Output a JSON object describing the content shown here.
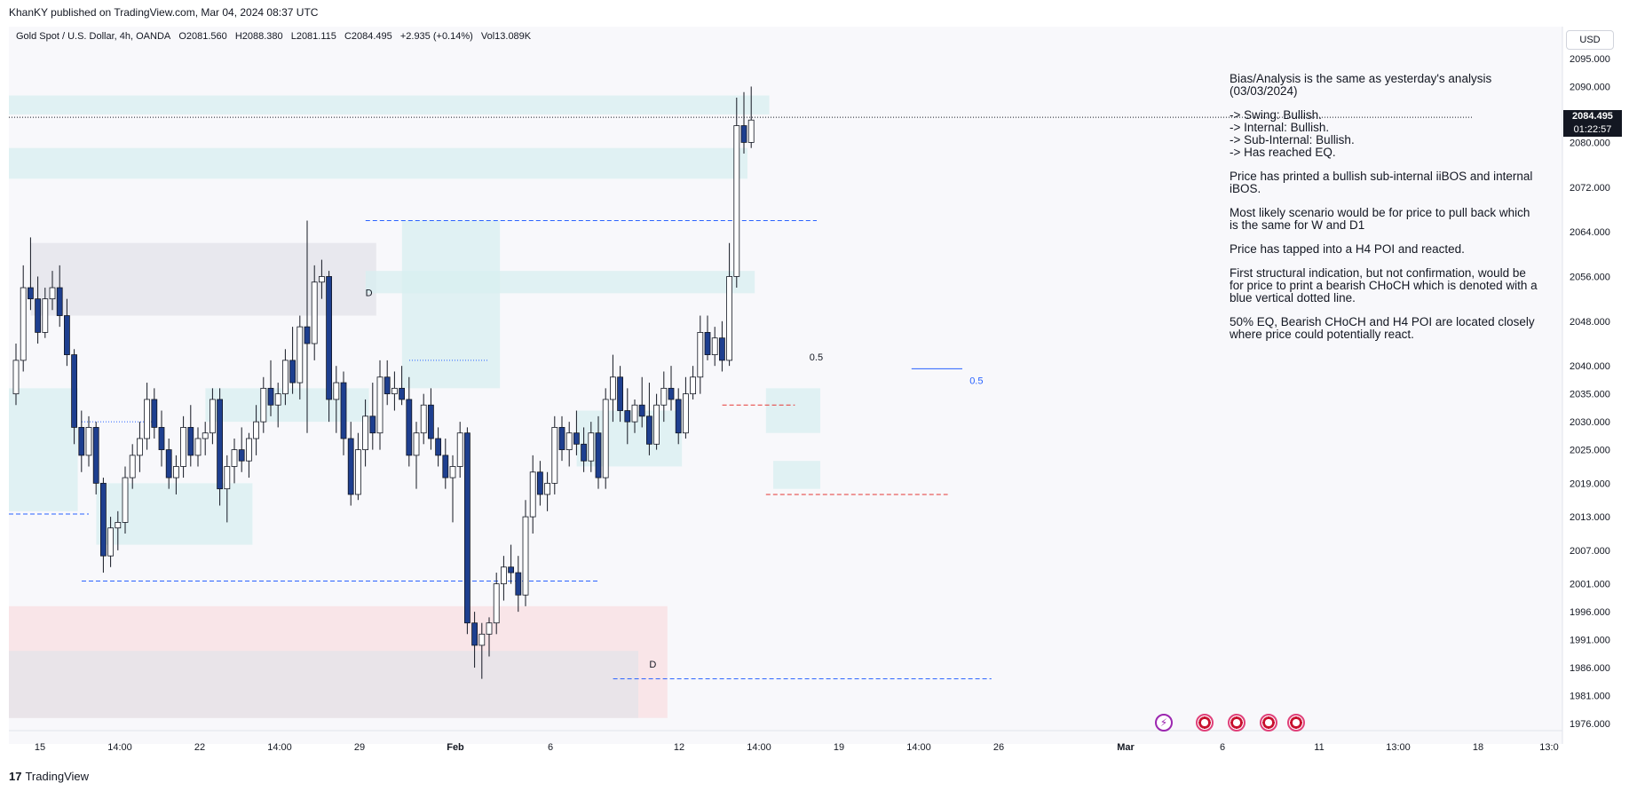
{
  "header": {
    "publisher": "KhanKY published on TradingView.com, Mar 04, 2024 08:37 UTC",
    "symbol": "Gold Spot / U.S. Dollar, 4h, OANDA",
    "open": "O2081.560",
    "high": "H2088.380",
    "low": "L2081.115",
    "close": "C2084.495",
    "change": "+2.935 (+0.14%)",
    "volume": "Vol13.089K",
    "currency": "USD"
  },
  "price_tags": {
    "last": "2084.495",
    "countdown": "01:22:57"
  },
  "annotation": [
    "Bias/Analysis is the same as yesterday's analysis (03/03/2024)",
    "-> Swing:  Bullish.\n-> Internal:  Bullish.\n-> Sub-Internal:  Bullish.\n-> Has reached EQ.",
    "Price has printed a bullish sub-internal iiBOS and internal iBOS.",
    "Most likely scenario would be for price to pull back which is the same for W and D1",
    "Price has tapped into a H4 POI and reacted.",
    "First structural indication, but not confirmation, would be for price to print a bearish CHoCH which is denoted with a blue vertical dotted line.",
    "50% EQ, Bearish CHoCH and H4 POI are located closely where price could potentially react."
  ],
  "footer": {
    "brand": "TradingView"
  },
  "colors": {
    "bull": "#ffffff",
    "bear": "#1e3f8f",
    "zone_blue": "#d8eff0",
    "zone_red": "#f9dfe1",
    "zone_gray": "#e3e3ea",
    "level_blue": "#2962ff",
    "level_red": "#e53935"
  },
  "chart_data": {
    "type": "candlestick",
    "title": "Gold Spot / U.S. Dollar, 4h, OANDA",
    "y_ticks": [
      2095.0,
      2090.0,
      2080.0,
      2072.0,
      2064.0,
      2056.0,
      2048.0,
      2040.0,
      2035.0,
      2030.0,
      2025.0,
      2019.0,
      2013.0,
      2007.0,
      2001.0,
      1996.0,
      1991.0,
      1986.0,
      1981.0,
      1976.0
    ],
    "x_ticks": [
      "15",
      "14:00",
      "22",
      "14:00",
      "29",
      "Feb",
      "6",
      "12",
      "14:00",
      "19",
      "14:00",
      "26",
      "Mar",
      "6",
      "11",
      "13:00",
      "18",
      "13:0"
    ],
    "ohlc": [
      [
        2035,
        2044,
        2033,
        2041
      ],
      [
        2041,
        2058,
        2039,
        2054
      ],
      [
        2054,
        2063,
        2050,
        2052
      ],
      [
        2052,
        2056,
        2044,
        2046
      ],
      [
        2046,
        2054,
        2045,
        2052
      ],
      [
        2052,
        2057,
        2050,
        2054
      ],
      [
        2054,
        2058,
        2047,
        2049
      ],
      [
        2049,
        2052,
        2040,
        2042
      ],
      [
        2042,
        2043,
        2026,
        2029
      ],
      [
        2029,
        2032,
        2021,
        2024
      ],
      [
        2024,
        2031,
        2022,
        2029
      ],
      [
        2029,
        2030,
        2017,
        2019
      ],
      [
        2019,
        2020,
        2003,
        2006
      ],
      [
        2006,
        2013,
        2004,
        2011
      ],
      [
        2011,
        2014,
        2007,
        2012
      ],
      [
        2012,
        2022,
        2010,
        2020
      ],
      [
        2020,
        2026,
        2018,
        2024
      ],
      [
        2024,
        2030,
        2021,
        2027
      ],
      [
        2027,
        2037,
        2025,
        2034
      ],
      [
        2034,
        2036,
        2027,
        2029
      ],
      [
        2029,
        2032,
        2022,
        2025
      ],
      [
        2025,
        2027,
        2018,
        2020
      ],
      [
        2020,
        2024,
        2017,
        2022
      ],
      [
        2022,
        2031,
        2020,
        2029
      ],
      [
        2029,
        2033,
        2022,
        2024
      ],
      [
        2024,
        2029,
        2022,
        2027
      ],
      [
        2027,
        2030,
        2024,
        2028
      ],
      [
        2028,
        2036,
        2026,
        2034
      ],
      [
        2034,
        2036,
        2015,
        2018
      ],
      [
        2018,
        2024,
        2012,
        2022
      ],
      [
        2022,
        2027,
        2019,
        2025
      ],
      [
        2025,
        2029,
        2021,
        2023
      ],
      [
        2023,
        2028,
        2020,
        2027
      ],
      [
        2027,
        2033,
        2024,
        2030
      ],
      [
        2030,
        2038,
        2028,
        2036
      ],
      [
        2036,
        2041,
        2031,
        2033
      ],
      [
        2033,
        2037,
        2029,
        2035
      ],
      [
        2035,
        2043,
        2033,
        2041
      ],
      [
        2041,
        2047,
        2035,
        2037
      ],
      [
        2037,
        2049,
        2034,
        2047
      ],
      [
        2047,
        2066,
        2028,
        2044
      ],
      [
        2044,
        2058,
        2041,
        2055
      ],
      [
        2055,
        2059,
        2052,
        2056
      ],
      [
        2056,
        2057,
        2030,
        2034
      ],
      [
        2034,
        2040,
        2028,
        2037
      ],
      [
        2037,
        2039,
        2024,
        2027
      ],
      [
        2027,
        2030,
        2015,
        2017
      ],
      [
        2017,
        2028,
        2016,
        2025
      ],
      [
        2025,
        2034,
        2022,
        2031
      ],
      [
        2031,
        2037,
        2025,
        2028
      ],
      [
        2028,
        2041,
        2025,
        2038
      ],
      [
        2038,
        2041,
        2033,
        2035
      ],
      [
        2035,
        2039,
        2032,
        2036
      ],
      [
        2036,
        2040,
        2033,
        2034
      ],
      [
        2034,
        2038,
        2022,
        2024
      ],
      [
        2024,
        2030,
        2018,
        2028
      ],
      [
        2028,
        2035,
        2026,
        2033
      ],
      [
        2033,
        2036,
        2025,
        2027
      ],
      [
        2027,
        2029,
        2022,
        2024
      ],
      [
        2024,
        2027,
        2018,
        2020
      ],
      [
        2020,
        2024,
        2012,
        2022
      ],
      [
        2022,
        2030,
        2020,
        2028
      ],
      [
        2028,
        2029,
        1992,
        1994
      ],
      [
        1994,
        1996,
        1986,
        1990
      ],
      [
        1990,
        1994,
        1984,
        1992
      ],
      [
        1992,
        1995,
        1988,
        1994
      ],
      [
        1994,
        2003,
        1992,
        2001
      ],
      [
        2001,
        2006,
        1998,
        2004
      ],
      [
        2004,
        2008,
        2001,
        2003
      ],
      [
        2003,
        2006,
        1996,
        1999
      ],
      [
        1999,
        2016,
        1997,
        2013
      ],
      [
        2013,
        2024,
        2010,
        2021
      ],
      [
        2021,
        2023,
        2015,
        2017
      ],
      [
        2017,
        2021,
        2014,
        2019
      ],
      [
        2019,
        2031,
        2017,
        2029
      ],
      [
        2029,
        2031,
        2023,
        2025
      ],
      [
        2025,
        2030,
        2022,
        2028
      ],
      [
        2028,
        2032,
        2024,
        2026
      ],
      [
        2026,
        2029,
        2021,
        2023
      ],
      [
        2023,
        2030,
        2021,
        2028
      ],
      [
        2028,
        2031,
        2018,
        2020
      ],
      [
        2020,
        2036,
        2018,
        2034
      ],
      [
        2034,
        2042,
        2030,
        2038
      ],
      [
        2038,
        2040,
        2030,
        2032
      ],
      [
        2032,
        2036,
        2026,
        2030
      ],
      [
        2030,
        2034,
        2028,
        2033
      ],
      [
        2033,
        2038,
        2029,
        2031
      ],
      [
        2031,
        2037,
        2024,
        2026
      ],
      [
        2026,
        2035,
        2025,
        2033
      ],
      [
        2033,
        2039,
        2030,
        2036
      ],
      [
        2036,
        2040,
        2032,
        2034
      ],
      [
        2034,
        2036,
        2026,
        2028
      ],
      [
        2028,
        2038,
        2027,
        2035
      ],
      [
        2035,
        2040,
        2034,
        2038
      ],
      [
        2038,
        2049,
        2035,
        2046
      ],
      [
        2046,
        2049,
        2041,
        2042
      ],
      [
        2042,
        2047,
        2040,
        2045
      ],
      [
        2045,
        2048,
        2039,
        2041
      ],
      [
        2041,
        2062,
        2040,
        2056
      ],
      [
        2056,
        2088,
        2054,
        2083
      ],
      [
        2083,
        2089,
        2078,
        2080
      ],
      [
        2080,
        2090,
        2079,
        2084
      ]
    ],
    "zones": [
      {
        "kind": "blue",
        "from_index": 0,
        "to_index": 103,
        "top": 2088.4,
        "bottom": 2085.0
      },
      {
        "kind": "blue",
        "from_index": 0,
        "to_index": 100,
        "top": 2079.0,
        "bottom": 2073.5
      },
      {
        "kind": "gray",
        "from_index": 3,
        "to_index": 49,
        "top": 2062.0,
        "bottom": 2049.0
      },
      {
        "kind": "blue",
        "from_index": 49,
        "to_index": 101,
        "top": 2057.0,
        "bottom": 2053.0
      },
      {
        "kind": "blue",
        "from_index": 54,
        "to_index": 66,
        "top": 2066.0,
        "bottom": 2036.0
      },
      {
        "kind": "red",
        "from_index": 0,
        "to_index": 89,
        "top": 1997.0,
        "bottom": 1977.0
      },
      {
        "kind": "gray",
        "from_index": 0,
        "to_index": 85,
        "top": 1989.0,
        "bottom": 1977.0
      },
      {
        "kind": "blue",
        "from_index": 78,
        "to_index": 91,
        "top": 2032.0,
        "bottom": 2022.0
      },
      {
        "kind": "blue",
        "from_index": 0,
        "to_index": 8,
        "top": 2036.0,
        "bottom": 2014.0
      },
      {
        "kind": "blue",
        "from_index": 12,
        "to_index": 32,
        "top": 2019.0,
        "bottom": 2008.0
      },
      {
        "kind": "blue",
        "from_index": 27,
        "to_index": 48,
        "top": 2036.0,
        "bottom": 2030.0
      },
      {
        "kind": "blue",
        "from_index": 104,
        "to_index": 110,
        "top": 2036.0,
        "bottom": 2028.0
      },
      {
        "kind": "blue",
        "from_index": 105,
        "to_index": 110,
        "top": 2023.0,
        "bottom": 2018.0
      }
    ],
    "levels": [
      {
        "kind": "dashed-blue",
        "from_index": 49,
        "to_index": 110,
        "price": 2066.0
      },
      {
        "kind": "dashed-blue",
        "from_index": 10,
        "to_index": 80,
        "price": 2001.5
      },
      {
        "kind": "dashed-blue",
        "from_index": 0,
        "to_index": 10,
        "price": 2013.5
      },
      {
        "kind": "dashed-blue",
        "from_index": 83,
        "to_index": 134,
        "price": 1984.0
      },
      {
        "kind": "dashed-red",
        "from_index": 104,
        "to_index": 128,
        "price": 2017.0
      },
      {
        "kind": "dashed-red",
        "from_index": 98,
        "to_index": 107,
        "price": 2033.0
      },
      {
        "kind": "dotted-blue",
        "from_index": 10,
        "to_index": 19,
        "price": 2030.0
      },
      {
        "kind": "dotted-blue",
        "from_index": 55,
        "to_index": 65,
        "price": 2041.0
      },
      {
        "kind": "solid-blue",
        "from_index": 124,
        "to_index": 130,
        "price": 2039.5
      },
      {
        "kind": "dotted-black",
        "from_index": 0,
        "to_index": 200,
        "price": 2084.5
      }
    ],
    "labels": [
      {
        "text": "0.5",
        "index": 109,
        "price": 2041.0
      },
      {
        "text": "0.5",
        "index": 131,
        "price": 2036.8
      },
      {
        "text": "D",
        "index": 48,
        "price": 2052.5
      },
      {
        "text": "D",
        "index": 87,
        "price": 1986.0
      }
    ]
  }
}
